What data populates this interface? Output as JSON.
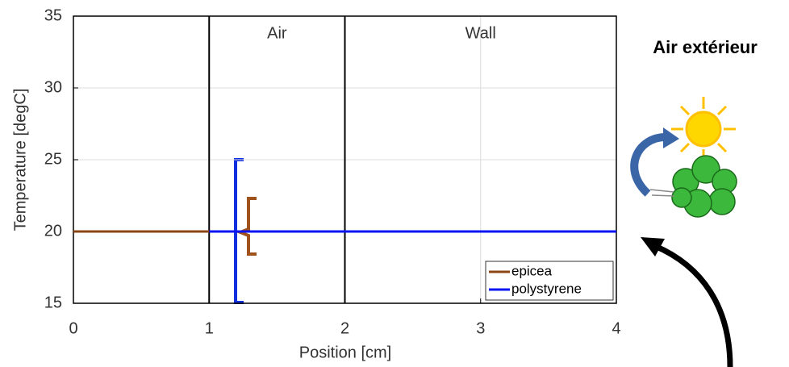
{
  "chart_data": {
    "type": "line",
    "xlabel": "Position [cm]",
    "ylabel": "Temperature [degC]",
    "series": [
      {
        "name": "epicea",
        "color": "#8b4513",
        "x": [
          0,
          1
        ],
        "values": [
          20,
          20
        ]
      },
      {
        "name": "polystyrene",
        "color": "#0a14f0",
        "x": [
          1,
          4
        ],
        "values": [
          20,
          20
        ]
      }
    ],
    "xlim": [
      0,
      4
    ],
    "xticks": [
      0,
      1,
      2,
      3,
      4
    ],
    "ylim": [
      15,
      35
    ],
    "yticks": [
      15,
      20,
      25,
      30,
      35
    ],
    "grid": true,
    "legend": "lower right",
    "boundaries": [
      1,
      2
    ],
    "regions": [
      "Air",
      "Wall"
    ],
    "side_label": "Air extérieur"
  }
}
